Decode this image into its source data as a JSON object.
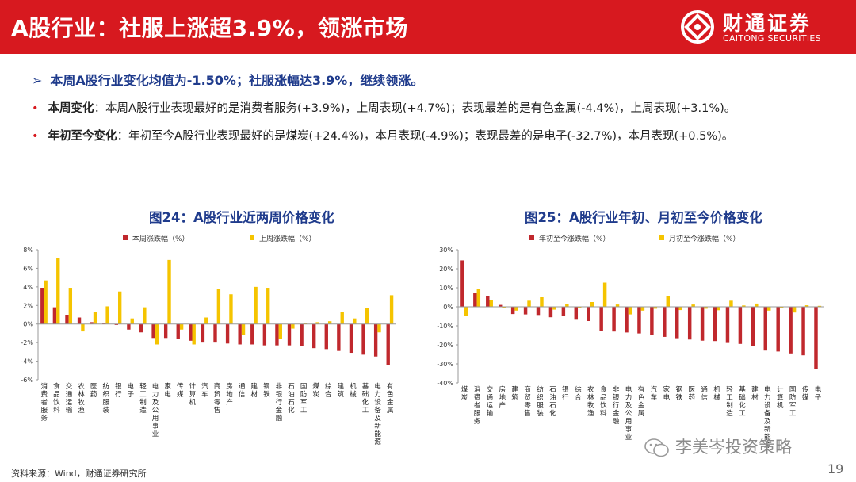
{
  "title": "A股行业：社服上涨超3.9%，领涨市场",
  "logo": {
    "cn": "财通证券",
    "en": "CAITONG SECURITIES",
    "icon": "caitong-logo-icon"
  },
  "headline": "本周A股行业变化均值为-1.50%；社服涨幅达3.9%，继续领涨。",
  "bullets": [
    {
      "label": "本周变化",
      "text": "：本周A股行业表现最好的是消费者服务(+3.9%)，上周表现(+4.7%)；表现最差的是有色金属(-4.4%)，上周表现(+3.1%)。"
    },
    {
      "label": "年初至今变化",
      "text": "：年初至今A股行业表现最好的是煤炭(+24.4%)，本月表现(-4.9%)；表现最差的是电子(-32.7%)，本月表现(+0.5%)。"
    }
  ],
  "colors": {
    "red": "#c0282d",
    "yellow": "#f5c400",
    "blue": "#1f3b8c",
    "header": "#d7191f"
  },
  "source": "资料来源：Wind，财通证券研究所",
  "page_number": "19",
  "watermark": "李美岑投资策略",
  "chart_data": [
    {
      "type": "bar",
      "title": "图24：A股行业近两周价格变化",
      "legend_position": "top",
      "ylim": [
        -6,
        8
      ],
      "yticks": [
        "8%",
        "6%",
        "4%",
        "2%",
        "0%",
        "-2%",
        "-4%",
        "-6%"
      ],
      "categories": [
        "消费者服务",
        "食品饮料",
        "交通运输",
        "农林牧渔",
        "医药",
        "纺织服装",
        "银行",
        "电子",
        "轻工制造",
        "电力及公用事业",
        "家电",
        "传媒",
        "计算机",
        "汽车",
        "商贸零售",
        "房地产",
        "通信",
        "建材",
        "钢铁",
        "非银行金融",
        "石油石化",
        "国防军工",
        "煤炭",
        "综合",
        "建筑",
        "机械",
        "基础化工",
        "电力设备及新能源",
        "有色金属"
      ],
      "series": [
        {
          "name": "本周涨跌幅（%）",
          "values": [
            3.9,
            1.8,
            1.0,
            0.7,
            0.2,
            0.1,
            -0.1,
            -0.6,
            -0.9,
            -1.5,
            -1.5,
            -1.6,
            -1.8,
            -2.0,
            -2.0,
            -2.1,
            -2.2,
            -2.2,
            -2.3,
            -2.3,
            -2.3,
            -2.4,
            -2.6,
            -2.7,
            -2.9,
            -3.1,
            -3.3,
            -3.5,
            -4.4
          ]
        },
        {
          "name": "上周涨跌幅（%）",
          "values": [
            4.7,
            7.1,
            3.9,
            -0.8,
            1.3,
            1.9,
            3.5,
            0.6,
            1.8,
            -2.2,
            6.9,
            -0.6,
            -2.2,
            0.7,
            3.8,
            3.2,
            -1.2,
            4.0,
            3.9,
            -1.6,
            -0.5,
            0.1,
            0.2,
            0.3,
            1.3,
            0.6,
            1.7,
            -0.9,
            3.1
          ]
        }
      ]
    },
    {
      "type": "bar",
      "title": "图25：A股行业年初、月初至今价格变化",
      "legend_position": "top",
      "ylim": [
        -40,
        30
      ],
      "yticks": [
        "30%",
        "20%",
        "10%",
        "0%",
        "-10%",
        "-20%",
        "-30%",
        "-40%"
      ],
      "categories": [
        "煤炭",
        "消费者服务",
        "交通运输",
        "房地产",
        "建筑",
        "商贸零售",
        "纺织服装",
        "石油石化",
        "银行",
        "综合",
        "农林牧渔",
        "食品饮料",
        "非银行金融",
        "电力及公用事业",
        "有色金属",
        "汽车",
        "家电",
        "钢铁",
        "医药",
        "通信",
        "机械",
        "轻工制造",
        "基础化工",
        "建材",
        "电力设备及新能源",
        "计算机",
        "国防军工",
        "传媒",
        "电子"
      ],
      "series": [
        {
          "name": "年初至今涨跌幅（%）",
          "values": [
            24.4,
            7.5,
            5.8,
            1.0,
            -3.8,
            -4.0,
            -4.3,
            -5.5,
            -5.0,
            -6.8,
            -7.5,
            -12.5,
            -13.0,
            -13.5,
            -14.0,
            -14.8,
            -15.8,
            -16.5,
            -17.2,
            -17.8,
            -18.0,
            -19.0,
            -19.5,
            -20.5,
            -23.0,
            -23.5,
            -24.5,
            -25.5,
            -32.7
          ]
        },
        {
          "name": "月初至今涨跌幅（%）",
          "values": [
            -4.9,
            9.4,
            3.6,
            -0.8,
            -2.0,
            3.2,
            5.0,
            -1.5,
            1.5,
            -0.8,
            2.5,
            12.7,
            1.2,
            -4.0,
            -2.0,
            -1.0,
            5.6,
            -1.7,
            1.2,
            -1.0,
            -1.8,
            3.2,
            0.7,
            1.7,
            -2.0,
            -0.5,
            -3.0,
            0.8,
            0.5
          ]
        }
      ]
    }
  ]
}
